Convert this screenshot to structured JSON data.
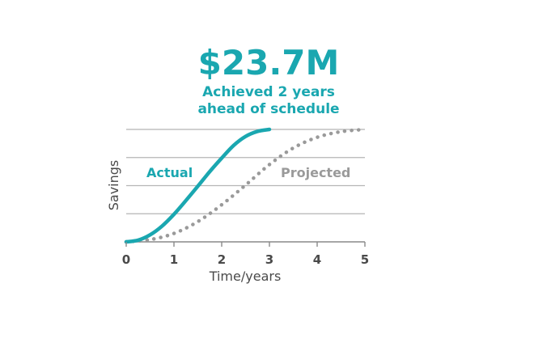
{
  "chart_data": {
    "type": "line",
    "headline": "$23.7M",
    "subtitle_line1": "Achieved 2 years",
    "subtitle_line2": "ahead of schedule",
    "xlabel": "Time/years",
    "ylabel": "Savings",
    "xlim": [
      0,
      5
    ],
    "ylim": [
      0,
      4
    ],
    "x_ticks": [
      "0",
      "1",
      "2",
      "3",
      "4",
      "5"
    ],
    "grid": "horizontal",
    "series": [
      {
        "name": "Actual",
        "color": "#1aa7b0",
        "style": "solid",
        "x": [
          0,
          0.25,
          0.5,
          0.75,
          1,
          1.25,
          1.5,
          1.75,
          2,
          2.25,
          2.5,
          2.75,
          3
        ],
        "y": [
          0,
          0.06,
          0.25,
          0.56,
          0.98,
          1.47,
          1.98,
          2.5,
          2.98,
          3.43,
          3.75,
          3.93,
          4.0
        ]
      },
      {
        "name": "Projected",
        "color": "#9a9a9a",
        "style": "dotted",
        "x": [
          0,
          0.5,
          1,
          1.5,
          2,
          2.5,
          3,
          3.5,
          4,
          4.5,
          5
        ],
        "y": [
          0,
          0.08,
          0.3,
          0.72,
          1.32,
          2.02,
          2.75,
          3.34,
          3.72,
          3.92,
          4.0
        ]
      }
    ]
  }
}
